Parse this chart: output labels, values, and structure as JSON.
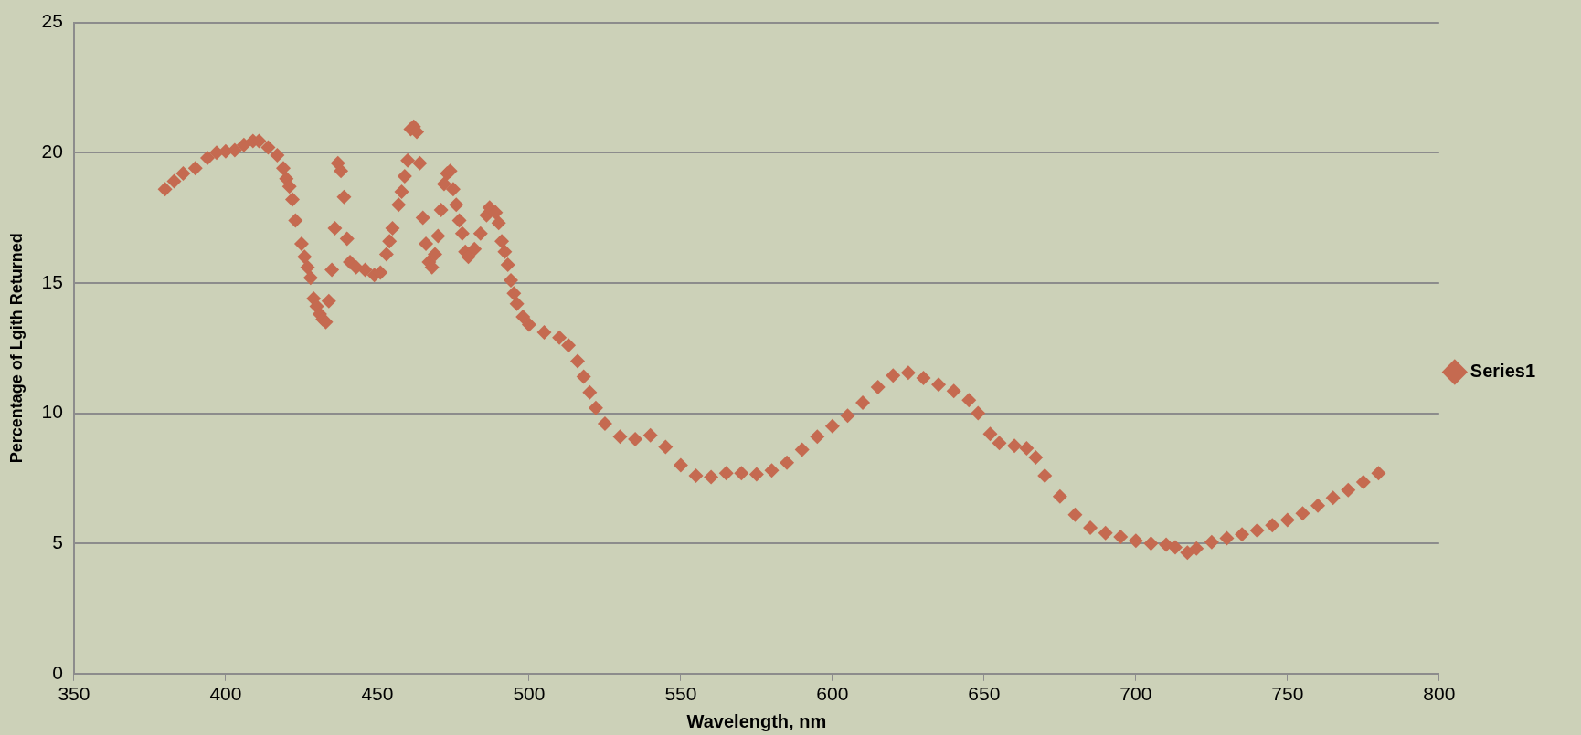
{
  "chart_data": {
    "type": "scatter",
    "xlabel": "Wavelength, nm",
    "ylabel": "Percentage of Lgith Returned",
    "x": [
      380,
      383,
      386,
      390,
      394,
      397,
      400,
      403,
      406,
      409,
      411,
      414,
      417,
      419,
      420,
      421,
      422,
      423,
      425,
      426,
      427,
      428,
      429,
      430,
      431,
      432,
      433,
      434,
      435,
      436,
      437,
      438,
      439,
      440,
      441,
      443,
      446,
      449,
      451,
      453,
      454,
      455,
      457,
      458,
      459,
      460,
      461,
      462,
      463,
      464,
      465,
      466,
      467,
      468,
      469,
      470,
      471,
      472,
      473,
      474,
      475,
      476,
      477,
      478,
      479,
      480,
      482,
      484,
      486,
      487,
      489,
      490,
      491,
      492,
      493,
      494,
      495,
      496,
      498,
      500,
      505,
      510,
      513,
      516,
      518,
      520,
      522,
      525,
      530,
      535,
      540,
      545,
      550,
      555,
      560,
      565,
      570,
      575,
      580,
      585,
      590,
      595,
      600,
      605,
      610,
      615,
      620,
      625,
      630,
      635,
      640,
      645,
      648,
      652,
      655,
      660,
      664,
      667,
      670,
      675,
      680,
      685,
      690,
      695,
      700,
      705,
      710,
      713,
      717,
      720,
      725,
      730,
      735,
      740,
      745,
      750,
      755,
      760,
      765,
      770,
      775,
      780
    ],
    "series": [
      {
        "name": "Series1",
        "color": "#c56a50",
        "values": [
          18.6,
          18.9,
          19.2,
          19.4,
          19.8,
          20.0,
          20.05,
          20.1,
          20.3,
          20.45,
          20.45,
          20.2,
          19.9,
          19.4,
          19.0,
          18.7,
          18.2,
          17.4,
          16.5,
          16.0,
          15.6,
          15.2,
          14.4,
          14.1,
          13.8,
          13.6,
          13.5,
          14.3,
          15.5,
          17.1,
          19.6,
          19.3,
          18.3,
          16.7,
          15.8,
          15.6,
          15.5,
          15.3,
          15.4,
          16.1,
          16.6,
          17.1,
          18.0,
          18.5,
          19.1,
          19.7,
          20.9,
          21.0,
          20.8,
          19.6,
          17.5,
          16.5,
          15.8,
          15.6,
          16.1,
          16.8,
          17.8,
          18.8,
          19.2,
          19.3,
          18.6,
          18.0,
          17.4,
          16.9,
          16.2,
          16.0,
          16.3,
          16.9,
          17.6,
          17.9,
          17.7,
          17.3,
          16.6,
          16.2,
          15.7,
          15.1,
          14.6,
          14.2,
          13.7,
          13.4,
          13.1,
          12.9,
          12.6,
          12.0,
          11.4,
          10.8,
          10.2,
          9.6,
          9.1,
          9.0,
          9.15,
          8.7,
          8.0,
          7.6,
          7.55,
          7.7,
          7.7,
          7.65,
          7.8,
          8.1,
          8.6,
          9.1,
          9.5,
          9.9,
          10.4,
          11.0,
          11.45,
          11.55,
          11.35,
          11.1,
          10.85,
          10.5,
          10.0,
          9.2,
          8.85,
          8.75,
          8.65,
          8.3,
          7.6,
          6.8,
          6.1,
          5.6,
          5.4,
          5.25,
          5.1,
          5.0,
          4.95,
          4.85,
          4.65,
          4.8,
          5.05,
          5.2,
          5.35,
          5.5,
          5.7,
          5.9,
          6.15,
          6.45,
          6.75,
          7.05,
          7.35,
          7.7
        ]
      }
    ],
    "xlim": [
      350,
      800
    ],
    "xticks": [
      350,
      400,
      450,
      500,
      550,
      600,
      650,
      700,
      750,
      800
    ],
    "ylim": [
      0,
      25
    ],
    "yticks": [
      0,
      5,
      10,
      15,
      20,
      25
    ],
    "grid": "y",
    "legend": "right",
    "marker": "diamond"
  }
}
